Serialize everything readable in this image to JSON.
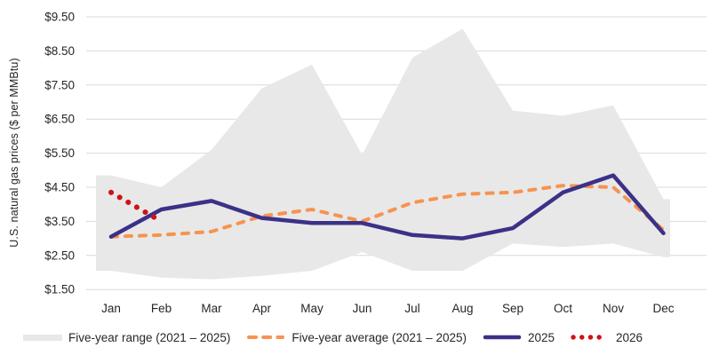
{
  "chart_data": {
    "type": "line",
    "title": "",
    "ylabel": "U.S. natural gas prices ($ per MMBtu)",
    "xlabel": "",
    "categories": [
      "Jan",
      "Feb",
      "Mar",
      "Apr",
      "May",
      "Jun",
      "Jul",
      "Aug",
      "Sep",
      "Oct",
      "Nov",
      "Dec"
    ],
    "ylim": [
      1.5,
      9.5
    ],
    "ytick_step": 1.0,
    "yticks": [
      "$9.50",
      "$8.50",
      "$7.50",
      "$6.50",
      "$5.50",
      "$4.50",
      "$3.50",
      "$2.50",
      "$1.50"
    ],
    "grid": true,
    "legend_position": "bottom",
    "colors": {
      "grid": "#d9d9d9",
      "text": "#262626",
      "background": "#ffffff"
    },
    "series": [
      {
        "name": "Five-year range (2021 – 2025)",
        "type": "band",
        "color": "#e8e8e8",
        "upper": [
          4.85,
          4.5,
          5.6,
          7.4,
          8.1,
          5.45,
          8.3,
          9.15,
          6.75,
          6.6,
          6.9,
          4.15
        ],
        "lower": [
          2.05,
          1.85,
          1.8,
          1.9,
          2.05,
          2.6,
          2.05,
          2.05,
          2.85,
          2.75,
          2.85,
          2.45
        ]
      },
      {
        "name": "Five-year average (2021 – 2025)",
        "type": "line",
        "style": "dashed",
        "color": "#f79350",
        "values": [
          3.05,
          3.1,
          3.2,
          3.65,
          3.85,
          3.5,
          4.05,
          4.3,
          4.35,
          4.55,
          4.5,
          3.25
        ]
      },
      {
        "name": "2025",
        "type": "line",
        "style": "solid",
        "color": "#3b3187",
        "values": [
          3.05,
          3.85,
          4.1,
          3.6,
          3.45,
          3.45,
          3.1,
          3.0,
          3.3,
          4.35,
          4.85,
          3.15
        ]
      },
      {
        "name": "2026",
        "type": "line",
        "style": "dotted",
        "color": "#d01116",
        "values": [
          4.35,
          3.5
        ]
      }
    ]
  }
}
